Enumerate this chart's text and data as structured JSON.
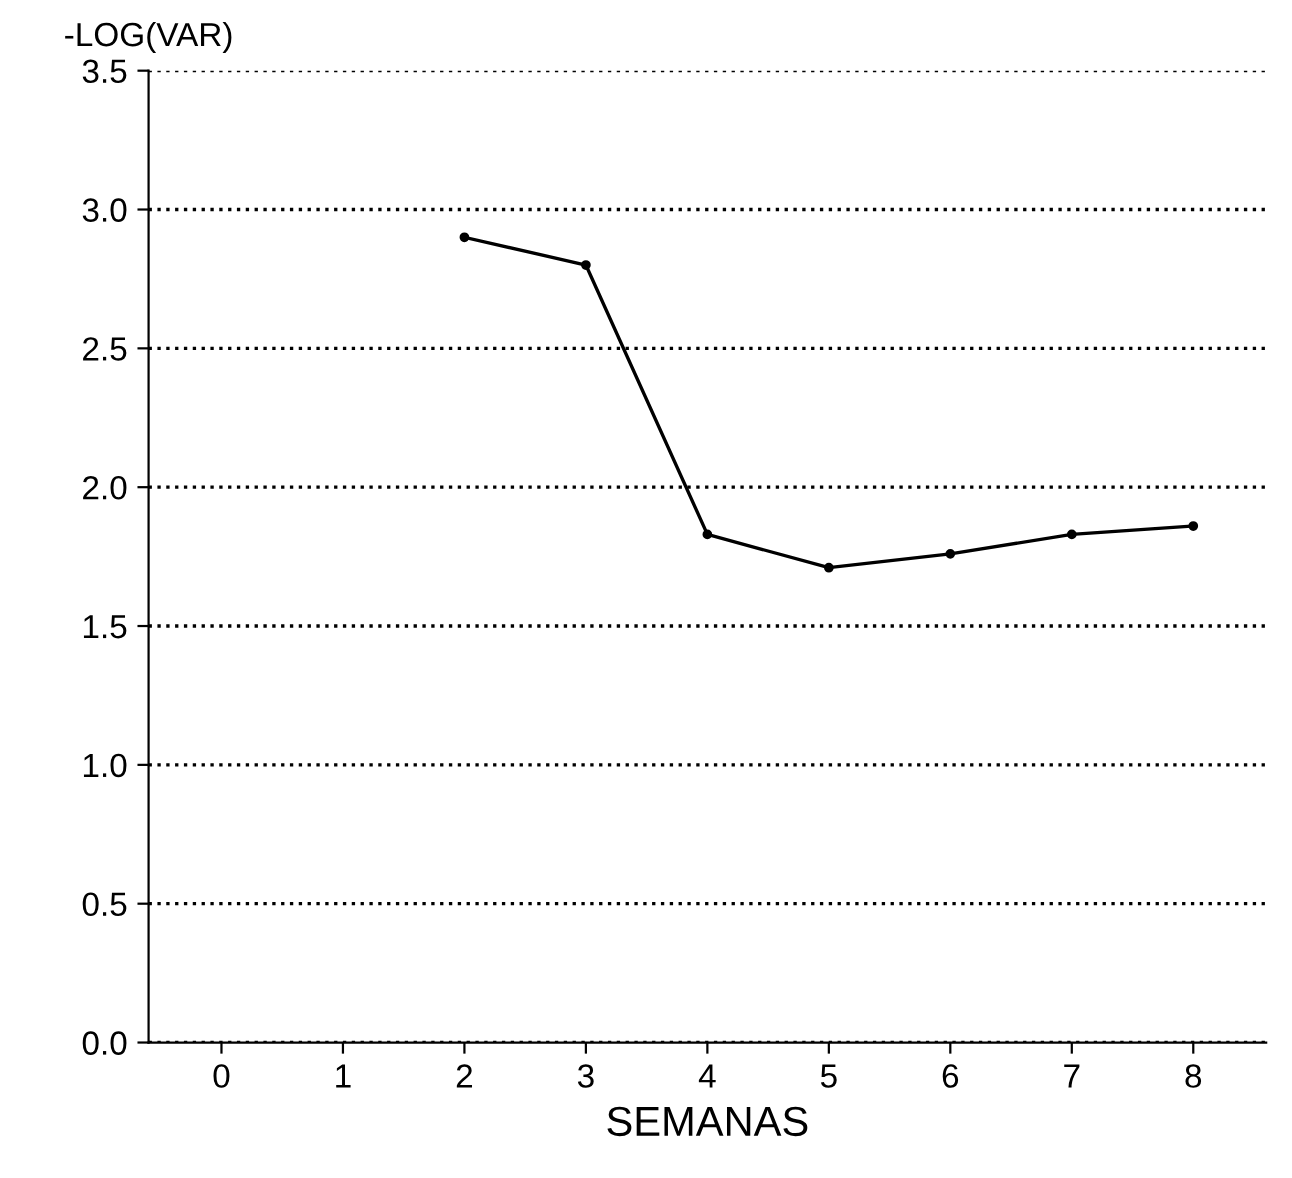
{
  "chart_data": {
    "type": "line",
    "xlabel": "SEMANAS",
    "ylabel": "-LOG(VAR)",
    "x": [
      2,
      3,
      4,
      5,
      6,
      7,
      8
    ],
    "series": [
      {
        "color": "#000000",
        "values": [
          2.9,
          2.8,
          1.83,
          1.71,
          1.76,
          1.83,
          1.86
        ]
      }
    ],
    "xlim": [
      -0.6,
      8.6
    ],
    "xticks": [
      0,
      1,
      2,
      3,
      4,
      5,
      6,
      7,
      8
    ],
    "ylim": [
      0,
      3.5
    ],
    "yticks": [
      {
        "value": 0,
        "label": "0.0"
      },
      {
        "value": 0.5,
        "label": "0.5"
      },
      {
        "value": 1,
        "label": "1.0"
      },
      {
        "value": 1.5,
        "label": "1.5"
      },
      {
        "value": 2,
        "label": "2.0"
      },
      {
        "value": 2.5,
        "label": "2.5"
      },
      {
        "value": 3,
        "label": "3.0"
      },
      {
        "value": 3.5,
        "label": "3.5"
      }
    ],
    "grid": "y",
    "marker": "circle",
    "line_style": "solid"
  }
}
